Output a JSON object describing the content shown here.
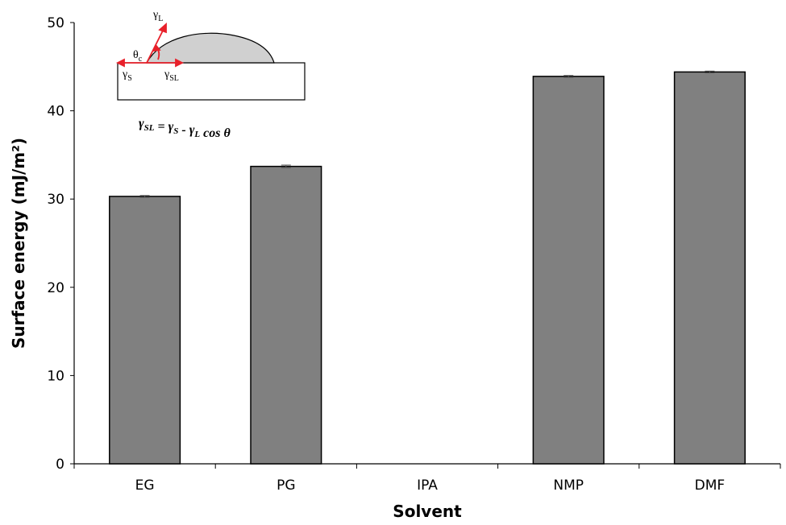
{
  "chart_data": {
    "type": "bar",
    "categories": [
      "EG",
      "PG",
      "IPA",
      "NMP",
      "DMF"
    ],
    "values": [
      30.3,
      33.7,
      null,
      43.9,
      44.4
    ],
    "errors": [
      0.1,
      0.15,
      null,
      0.1,
      0.1
    ],
    "color": "#808080",
    "ylim": [
      0,
      50
    ],
    "yticks": [
      0,
      10,
      20,
      30,
      40,
      50
    ],
    "grid": false,
    "ylabel": "Surface energy (mJ/m²)",
    "xlabel": "Solvent",
    "inset": {
      "labels": [
        {
          "base": "γ",
          "sub": "L"
        },
        {
          "base": "θ",
          "sub": "c"
        },
        {
          "base": "γ",
          "sub": "S"
        },
        {
          "base": "γ",
          "sub": "SL"
        }
      ],
      "equation": [
        {
          "base": "γ",
          "sub": "SL"
        },
        {
          "base": " =  γ",
          "sub": "S"
        },
        {
          "base": " - γ",
          "sub": "L"
        },
        {
          "base": " cos θ"
        }
      ]
    }
  }
}
